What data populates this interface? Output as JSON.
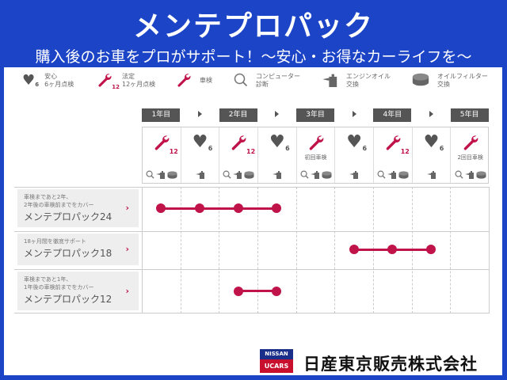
{
  "header": {
    "title": "メンテプロパック",
    "subtitle": "購入後のお車をプロがサポート！～安心・お得なカーライフを～"
  },
  "legend": [
    {
      "icon": "heart-icon",
      "badge": "6",
      "line1": "安心",
      "line2": "6ヶ月点検"
    },
    {
      "icon": "wrench-icon",
      "badge": "12",
      "line1": "法定",
      "line2": "12ヶ月点検"
    },
    {
      "icon": "wrench-icon",
      "badge": "",
      "line1": "車検",
      "line2": ""
    },
    {
      "icon": "computer-diagnosis-icon",
      "badge": "",
      "line1": "コンピューター",
      "line2": "診断"
    },
    {
      "icon": "engine-oil-icon",
      "badge": "",
      "line1": "エンジンオイル",
      "line2": "交換"
    },
    {
      "icon": "oil-filter-icon",
      "badge": "",
      "line1": "オイルフィルター",
      "line2": "交換"
    }
  ],
  "years": [
    "1年目",
    "2年目",
    "3年目",
    "4年目",
    "5年目"
  ],
  "columns": [
    {
      "main": "wrench",
      "badge": "12",
      "sub": "",
      "small": [
        "search",
        "oil",
        "filter"
      ]
    },
    {
      "main": "heart",
      "badge": "6",
      "sub": "",
      "small": [
        "oil"
      ]
    },
    {
      "main": "wrench",
      "badge": "12",
      "sub": "",
      "small": [
        "search",
        "oil",
        "filter"
      ]
    },
    {
      "main": "heart",
      "badge": "6",
      "sub": "",
      "small": [
        "oil"
      ]
    },
    {
      "main": "wrench",
      "badge": "",
      "sub": "初回車検",
      "small": [
        "search",
        "oil",
        "filter"
      ]
    },
    {
      "main": "heart",
      "badge": "6",
      "sub": "",
      "small": [
        "oil"
      ]
    },
    {
      "main": "wrench",
      "badge": "12",
      "sub": "",
      "small": [
        "search",
        "oil",
        "filter"
      ]
    },
    {
      "main": "heart",
      "badge": "6",
      "sub": "",
      "small": [
        "oil"
      ]
    },
    {
      "main": "wrench",
      "badge": "",
      "sub": "2回目車検",
      "small": [
        "search",
        "oil",
        "filter"
      ]
    }
  ],
  "plans": [
    {
      "desc1": "車検まであと2年、",
      "desc2": "2年後の車検前までをカバー",
      "name": "メンテプロパック24",
      "start": 0,
      "end": 3
    },
    {
      "desc1": "18ヶ月間を徹底サポート",
      "desc2": "",
      "name": "メンテプロパック18",
      "start": 5,
      "end": 7
    },
    {
      "desc1": "車検まであと1年、",
      "desc2": "1年後の車検前までをカバー",
      "name": "メンテプロパック12",
      "start": 2,
      "end": 3
    }
  ],
  "footer": {
    "logo_top": "NISSAN",
    "logo_bottom": "UCARS",
    "company": "日産東京販売株式会社"
  },
  "colors": {
    "background": "#1c44c6",
    "accent": "#c0134a",
    "header_grey": "#555555"
  }
}
